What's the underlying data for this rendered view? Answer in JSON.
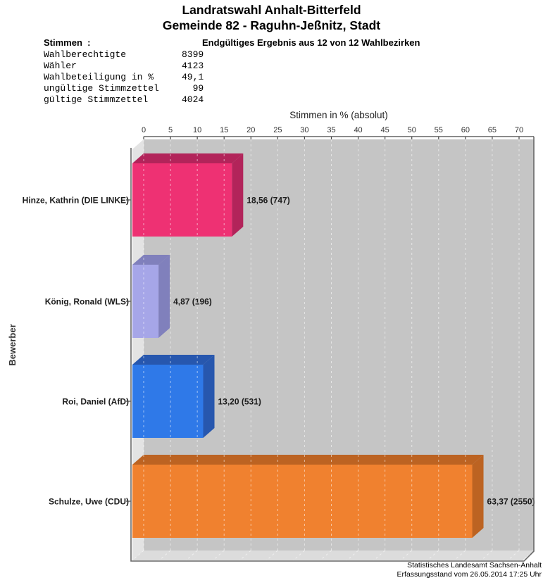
{
  "header": {
    "title_line1": "Landratswahl Anhalt-Bitterfeld",
    "title_line2": "Gemeinde 82 - Raguhn-Jeßnitz, Stadt",
    "stimmen_label": "Stimmen  :",
    "result_status": "Endgültiges Ergebnis aus 12 von 12 Wahlbezirken",
    "stats": [
      {
        "label": "Wahlberechtigte",
        "value": "8399"
      },
      {
        "label": "Wähler",
        "value": "4123"
      },
      {
        "label": "Wahlbeteiligung in %",
        "value": "49,1"
      },
      {
        "label": "ungültige Stimmzettel",
        "value": "99"
      },
      {
        "label": "gültige Stimmzettel",
        "value": "4024"
      }
    ]
  },
  "chart_data": {
    "type": "bar",
    "orientation": "horizontal",
    "xlabel": "Stimmen in % (absolut)",
    "ylabel": "Bewerber",
    "xlim": [
      0,
      70
    ],
    "tick_step": 5,
    "xticks": [
      0,
      5,
      10,
      15,
      20,
      25,
      30,
      35,
      40,
      45,
      50,
      55,
      60,
      65,
      70
    ],
    "grid": "vertical dashed, 3D gray panel",
    "categories": [
      "Hinze, Kathrin (DIE LINKE)",
      "König, Ronald (WLS)",
      "Roi, Daniel (AfD)",
      "Schulze, Uwe (CDU)"
    ],
    "values": [
      18.56,
      4.87,
      13.2,
      63.37
    ],
    "absolute_votes": [
      747,
      196,
      531,
      2550
    ],
    "value_labels": [
      "18,56 (747)",
      "4,87 (196)",
      "13,20 (531)",
      "63,37 (2550)"
    ],
    "bar_colors": [
      {
        "face": "#EE3173",
        "dark": "#B2245A"
      },
      {
        "face": "#A6A6E8",
        "dark": "#8080BC"
      },
      {
        "face": "#2F79E8",
        "dark": "#2757AE"
      },
      {
        "face": "#F0812F",
        "dark": "#BC6322"
      }
    ],
    "colors": {
      "wall": "#c5c5c5",
      "floor": "#dcdcdc",
      "side_wall": "#e3e3e3",
      "border": "#686868",
      "axis": "#444444"
    }
  },
  "footer": {
    "line1": "Statistisches Landesamt Sachsen-Anhalt",
    "line2": "Erfassungsstand vom 26.05.2014 17:25 Uhr"
  }
}
